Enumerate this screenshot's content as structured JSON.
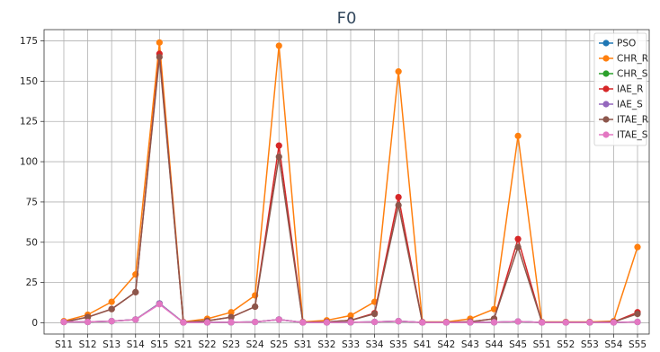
{
  "chart_data": {
    "type": "line",
    "title": "F0",
    "xlabel": "",
    "ylabel": "",
    "categories": [
      "S11",
      "S12",
      "S13",
      "S14",
      "S15",
      "S21",
      "S22",
      "S23",
      "S24",
      "S25",
      "S31",
      "S32",
      "S33",
      "S34",
      "S35",
      "S41",
      "S42",
      "S43",
      "S44",
      "S45",
      "S51",
      "S52",
      "S53",
      "S54",
      "S55"
    ],
    "ylim": [
      -7,
      182
    ],
    "yticks": [
      0,
      25,
      50,
      75,
      100,
      125,
      150,
      175
    ],
    "grid": true,
    "legend_position": "top-right",
    "series": [
      {
        "name": "PSO",
        "color": "#1f77b4",
        "values": [
          0.5,
          0.5,
          1,
          2,
          12,
          0.2,
          0.2,
          0.3,
          0.5,
          2,
          0.2,
          0.2,
          0.3,
          0.5,
          1,
          0.2,
          0.2,
          0.2,
          0.3,
          0.8,
          0.2,
          0.2,
          0.2,
          0.2,
          0.5
        ]
      },
      {
        "name": "CHR_R",
        "color": "#ff7f0e",
        "values": [
          1,
          5,
          13,
          30,
          174,
          0.5,
          2.5,
          6.5,
          17,
          172,
          0.5,
          1.5,
          4.5,
          13,
          156,
          0.5,
          0.5,
          2.5,
          8.5,
          116,
          0.5,
          0.5,
          0.5,
          1,
          47
        ]
      },
      {
        "name": "CHR_S",
        "color": "#2ca02c",
        "values": [
          0.5,
          0.5,
          1,
          2,
          12,
          0.2,
          0.2,
          0.3,
          0.5,
          2,
          0.2,
          0.2,
          0.3,
          0.5,
          1,
          0.2,
          0.2,
          0.2,
          0.3,
          0.8,
          0.2,
          0.2,
          0.2,
          0.2,
          0.5
        ]
      },
      {
        "name": "IAE_R",
        "color": "#d62728",
        "values": [
          0.5,
          3.5,
          8.5,
          19,
          167,
          0.3,
          1.2,
          3.5,
          10,
          110,
          0.3,
          0.5,
          1.5,
          6,
          78,
          0.3,
          0.3,
          0.6,
          2.5,
          52,
          0.3,
          0.3,
          0.3,
          0.5,
          6.5
        ]
      },
      {
        "name": "IAE_S",
        "color": "#9467bd",
        "values": [
          0.5,
          0.5,
          1,
          2,
          12,
          0.2,
          0.2,
          0.3,
          0.5,
          2,
          0.2,
          0.2,
          0.3,
          0.5,
          1,
          0.2,
          0.2,
          0.2,
          0.3,
          0.8,
          0.2,
          0.2,
          0.2,
          0.2,
          0.5
        ]
      },
      {
        "name": "ITAE_R",
        "color": "#8c564b",
        "values": [
          0.5,
          3.5,
          8.5,
          19,
          165,
          0.3,
          1.2,
          3.5,
          10,
          103,
          0.3,
          0.5,
          1.5,
          5.5,
          73,
          0.3,
          0.3,
          0.6,
          2.5,
          47,
          0.3,
          0.3,
          0.3,
          0.5,
          5.5
        ]
      },
      {
        "name": "ITAE_S",
        "color": "#e377c2",
        "values": [
          0.5,
          0.5,
          1,
          2,
          11.5,
          0.2,
          0.2,
          0.3,
          0.5,
          2,
          0.2,
          0.2,
          0.3,
          0.5,
          1,
          0.2,
          0.2,
          0.2,
          0.3,
          0.8,
          0.2,
          0.2,
          0.2,
          0.2,
          0.5
        ]
      }
    ]
  }
}
